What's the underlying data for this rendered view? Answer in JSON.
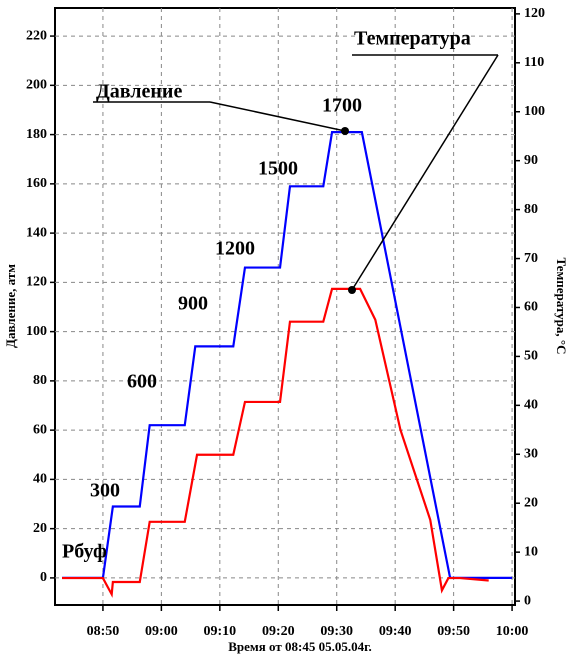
{
  "chart_data": {
    "type": "line",
    "x_label": "Время от 08:45    05.05.04г.",
    "y_label": "Давление, атм",
    "y2_label": "Температура, °С",
    "xlim": [
      521.8,
      600.5
    ],
    "xticks": [
      {
        "value": 530,
        "label": "08:50"
      },
      {
        "value": 540,
        "label": "09:00"
      },
      {
        "value": 550,
        "label": "09:10"
      },
      {
        "value": 560,
        "label": "09:20"
      },
      {
        "value": 570,
        "label": "09:30"
      },
      {
        "value": 580,
        "label": "09:40"
      },
      {
        "value": 590,
        "label": "09:50"
      },
      {
        "value": 600,
        "label": "10:00"
      }
    ],
    "ylim": [
      -11,
      231.4
    ],
    "yticks": [
      0,
      20,
      40,
      60,
      80,
      100,
      120,
      140,
      160,
      180,
      200,
      220
    ],
    "y2lim": [
      -0.8,
      121.2
    ],
    "y2ticks": [
      0,
      10,
      20,
      30,
      40,
      50,
      60,
      70,
      80,
      90,
      100,
      110,
      120
    ],
    "grid": true,
    "series": [
      {
        "name": "Давление",
        "color": "#0000ff",
        "x": [
          523,
          530,
          531.7,
          536.3,
          538,
          544,
          545.8,
          552.3,
          554.3,
          560.3,
          562,
          567.7,
          569.2,
          574.3,
          589.4,
          600
        ],
        "values": [
          0,
          0,
          29,
          29,
          62,
          62,
          94,
          94,
          126,
          126,
          159,
          159,
          181,
          181,
          0,
          0
        ]
      },
      {
        "name": "Температура",
        "color": "#ff0000",
        "axis": "y2",
        "x": [
          523,
          530,
          530.9,
          531.5,
          531.7,
          536.3,
          538,
          544,
          546.1,
          552.3,
          554.3,
          560.3,
          562,
          567.7,
          569.2,
          574,
          576.6,
          580.9,
          586,
          588,
          589.1,
          591.1,
          596
        ],
        "values": [
          4.7,
          4.7,
          2.7,
          1.4,
          3.9,
          3.9,
          16.2,
          16.2,
          29.9,
          29.9,
          40.7,
          40.7,
          57.1,
          57.1,
          63.8,
          63.8,
          57.5,
          35,
          16.6,
          2.2,
          4.7,
          4.7,
          4.2
        ]
      }
    ],
    "annotations": [
      "Рбуф",
      "300",
      "600",
      "900",
      "1200",
      "1500",
      "1700"
    ]
  }
}
